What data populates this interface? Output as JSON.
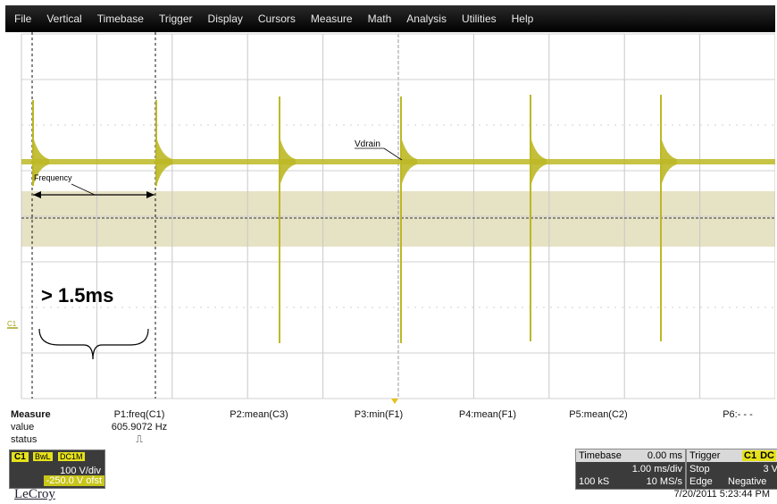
{
  "menu": [
    "File",
    "Vertical",
    "Timebase",
    "Trigger",
    "Display",
    "Cursors",
    "Measure",
    "Math",
    "Analysis",
    "Utilities",
    "Help"
  ],
  "screen": {
    "trace_color": "#bdb825",
    "band_color": "#e6e2c4",
    "trace_label": "Vdrain",
    "frequency_label": "Frequency",
    "annotation": "> 1.5ms",
    "channel_marker": "C1"
  },
  "measure": {
    "title": "Measure",
    "row_value": "value",
    "row_status": "status",
    "params": [
      {
        "name": "P1:freq(C1)",
        "value": "605.9072 Hz",
        "status": "⎍"
      },
      {
        "name": "P2:mean(C3)",
        "value": "",
        "status": ""
      },
      {
        "name": "P3:min(F1)",
        "value": "",
        "status": ""
      },
      {
        "name": "P4:mean(F1)",
        "value": "",
        "status": ""
      },
      {
        "name": "P5:mean(C2)",
        "value": "",
        "status": ""
      },
      {
        "name": "P6:- - -",
        "value": "",
        "status": ""
      }
    ]
  },
  "channel": {
    "tag": "C1",
    "bwl": "BwL",
    "coupling": "DC1M",
    "vdiv": "100 V/div",
    "offset": "-250.0 V ofst"
  },
  "brand": "LeCroy",
  "timebase": {
    "label": "Timebase",
    "delay": "0.00 ms",
    "tdiv": "1.00 ms/div",
    "samples": "100 kS",
    "rate": "10 MS/s"
  },
  "trigger": {
    "label": "Trigger",
    "source": "C1",
    "coupling": "DC",
    "mode": "Stop",
    "level": "3 V",
    "type": "Edge",
    "slope": "Negative"
  },
  "datetime": "7/20/2011 5:23:44 PM"
}
